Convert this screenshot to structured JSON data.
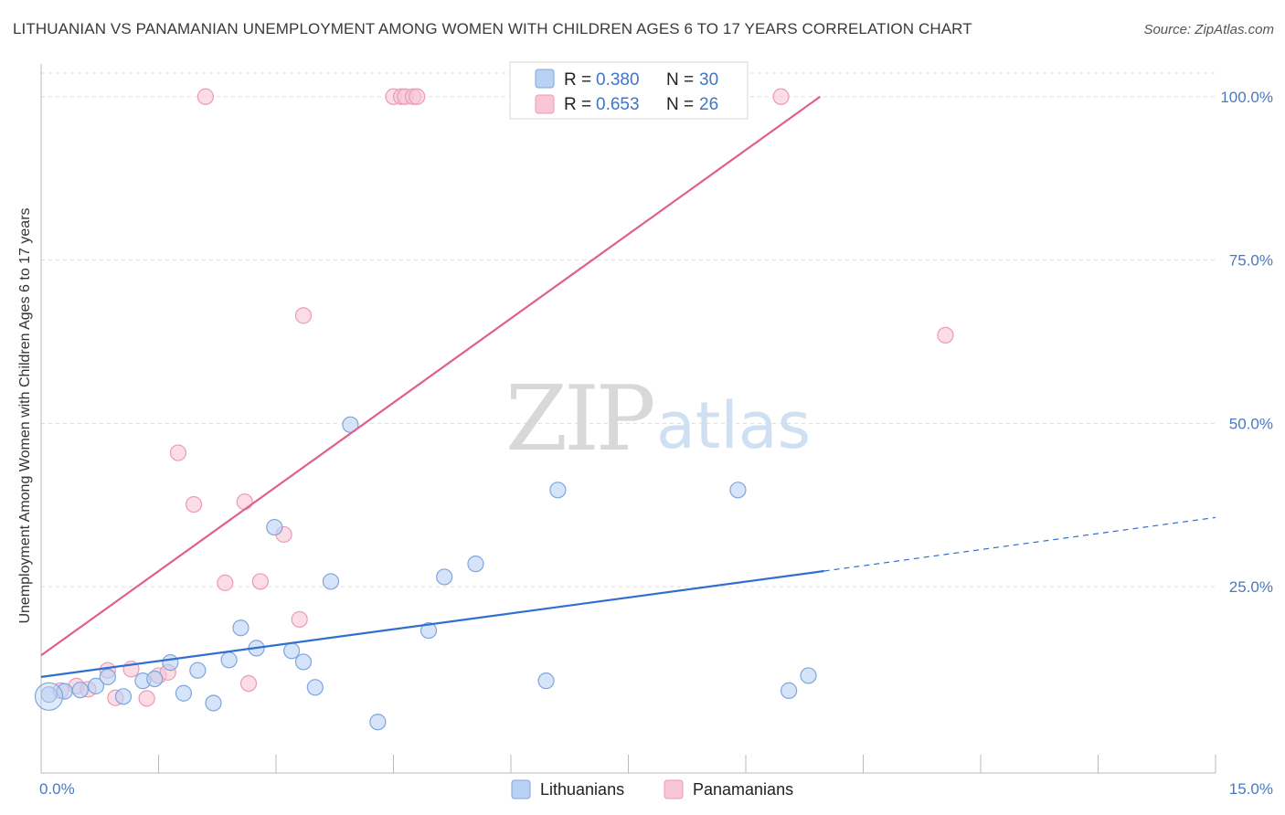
{
  "title": "LITHUANIAN VS PANAMANIAN UNEMPLOYMENT AMONG WOMEN WITH CHILDREN AGES 6 TO 17 YEARS CORRELATION CHART",
  "source": "Source: ZipAtlas.com",
  "watermark": {
    "zip": "ZIP",
    "atlas": "atlas"
  },
  "colors": {
    "lithuanian_fill": "#b9d2f3",
    "lithuanian_stroke": "#7ea6dc",
    "lithuanian_line": "#2f6fd0",
    "panamanian_fill": "#f9c6d5",
    "panamanian_stroke": "#ec9ab5",
    "panamanian_line": "#e0608a",
    "grid": "#dddddd",
    "tick_text": "#4a78c2"
  },
  "legend": {
    "rows": [
      {
        "r_label": "R =",
        "r_value": "0.380",
        "n_label": "N =",
        "n_value": "30"
      },
      {
        "r_label": "R =",
        "r_value": "0.653",
        "n_label": "N =",
        "n_value": "26"
      }
    ]
  },
  "chart_data": {
    "type": "scatter",
    "ylabel": "Unemployment Among Women with Children Ages 6 to 17 years",
    "xlabel": "",
    "xlim": [
      0,
      15
    ],
    "ylim": [
      -3.5,
      105
    ],
    "x_tick_labels": [
      "0.0%",
      "15.0%"
    ],
    "y_ticks": [
      25,
      50,
      75,
      100
    ],
    "y_tick_labels": [
      "25.0%",
      "50.0%",
      "75.0%",
      "100.0%"
    ],
    "grid": true,
    "legend_position": "top-center",
    "series": [
      {
        "name": "Lithuanians",
        "points": [
          [
            0.1,
            8.5
          ],
          [
            0.3,
            9.0
          ],
          [
            0.5,
            9.2
          ],
          [
            0.7,
            9.8
          ],
          [
            0.85,
            11.2
          ],
          [
            1.05,
            8.2
          ],
          [
            1.3,
            10.6
          ],
          [
            1.45,
            10.9
          ],
          [
            1.65,
            13.4
          ],
          [
            1.82,
            8.7
          ],
          [
            2.0,
            12.2
          ],
          [
            2.2,
            7.2
          ],
          [
            2.4,
            13.8
          ],
          [
            2.55,
            18.7
          ],
          [
            2.75,
            15.6
          ],
          [
            2.98,
            34.1
          ],
          [
            3.2,
            15.2
          ],
          [
            3.35,
            13.5
          ],
          [
            3.5,
            9.6
          ],
          [
            3.7,
            25.8
          ],
          [
            3.95,
            49.8
          ],
          [
            4.3,
            4.3
          ],
          [
            4.95,
            18.3
          ],
          [
            5.15,
            26.5
          ],
          [
            5.55,
            28.5
          ],
          [
            6.45,
            10.6
          ],
          [
            6.6,
            39.8
          ],
          [
            8.9,
            39.8
          ],
          [
            9.55,
            9.1
          ],
          [
            9.8,
            11.4
          ]
        ],
        "trend": {
          "x": [
            0,
            10.0
          ],
          "y": [
            11.2,
            27.4
          ]
        },
        "trend_dashed_extension": {
          "x": [
            10.0,
            15.0
          ],
          "y": [
            27.4,
            35.6
          ]
        }
      },
      {
        "name": "Panamanians",
        "points": [
          [
            0.25,
            9.1
          ],
          [
            0.45,
            9.8
          ],
          [
            0.6,
            9.3
          ],
          [
            0.85,
            12.2
          ],
          [
            0.95,
            8.0
          ],
          [
            1.15,
            12.4
          ],
          [
            1.35,
            7.9
          ],
          [
            1.5,
            11.4
          ],
          [
            1.62,
            11.9
          ],
          [
            1.75,
            45.5
          ],
          [
            1.95,
            37.6
          ],
          [
            2.1,
            100.0
          ],
          [
            2.35,
            25.6
          ],
          [
            2.6,
            38.0
          ],
          [
            2.65,
            10.2
          ],
          [
            2.8,
            25.8
          ],
          [
            3.1,
            33.0
          ],
          [
            3.3,
            20.0
          ],
          [
            3.35,
            66.5
          ],
          [
            4.5,
            100.0
          ],
          [
            4.6,
            100.0
          ],
          [
            4.65,
            100.0
          ],
          [
            4.75,
            100.0
          ],
          [
            4.8,
            100.0
          ],
          [
            9.45,
            100.0
          ],
          [
            11.55,
            63.5
          ]
        ],
        "trend": {
          "x": [
            0,
            9.95
          ],
          "y": [
            14.5,
            100.0
          ]
        }
      }
    ]
  }
}
